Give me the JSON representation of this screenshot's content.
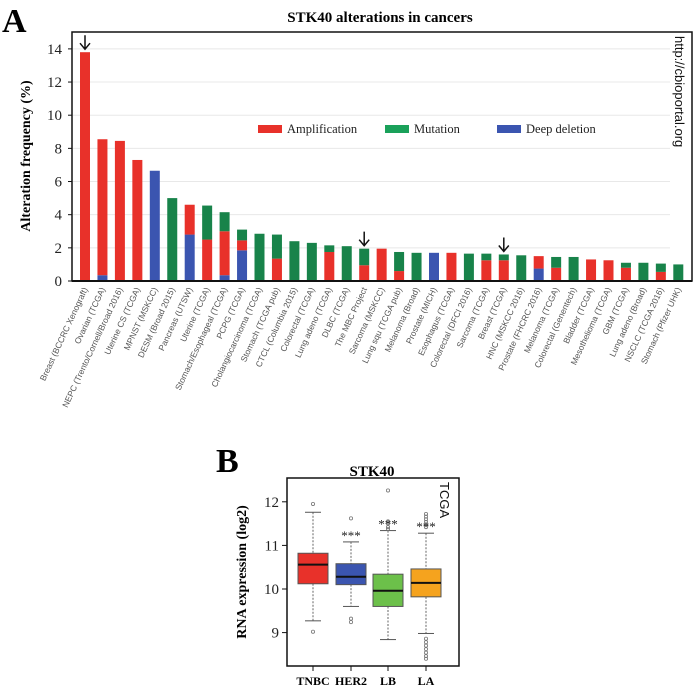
{
  "chart_data": [
    {
      "panel": "A",
      "type": "bar",
      "stacked": true,
      "title": "STK40 alterations in cancers",
      "xlabel": "",
      "ylabel": "Alteration frequency (%)",
      "ylim": [
        0,
        15
      ],
      "yticks": [
        0,
        2,
        4,
        6,
        8,
        10,
        12,
        14
      ],
      "grid": true,
      "legend_position": "top-center",
      "source_annotation": "http://cbioportal.org",
      "arrow_markers": [
        "Breast (BCCRC Xenograft)",
        "The MBC Project",
        "Breast (TCGA)"
      ],
      "categories": [
        "Breast (BCCRC Xenograft)",
        "Ovarian (TCGA)",
        "NEPC (Trento/Cornell/Broad 2016)",
        "Uterine CS (TCGA)",
        "MPNST (MSKCC)",
        "DESM (Broad 2015)",
        "Pancreas (UTSW)",
        "Uterine (TCGA)",
        "Stomach/Esophageal (TCGA)",
        "PCPG (TCGA)",
        "Cholangiocarcinoma (TCGA)",
        "Stomach (TCGA pub)",
        "CTCL (Columbia 2015)",
        "Colorectal (TCGA)",
        "Lung adeno (TCGA)",
        "DLBC (TCGA)",
        "The MBC Project",
        "Sarcoma (MSKCC)",
        "Lung squ (TCGA pub)",
        "Melanoma (Broad)",
        "Prostate (MICH)",
        "Esophagus (TCGA)",
        "Colorectal (DFCI 2016)",
        "Sarcoma (TCGA)",
        "Breast (TCGA)",
        "HNC (MSKCC 2016)",
        "Prostate (FHCRC 2016)",
        "Melanoma (TCGA)",
        "Colorectal (Genentech)",
        "Bladder (TCGA)",
        "Mesothelioma (TCGA)",
        "GBM (TCGA)",
        "Lung adeno (Broad)",
        "NSCLC (TCGA 2016)",
        "Stomach (Pfizer UHK)"
      ],
      "series": [
        {
          "name": "Deep deletion",
          "color": "#3b55b0",
          "values": [
            0,
            0.35,
            0,
            0,
            6.65,
            0,
            2.8,
            0,
            0.35,
            1.85,
            0,
            0,
            0,
            0,
            0,
            0,
            0,
            0,
            0,
            0,
            1.7,
            0,
            0,
            0,
            0,
            0,
            0.75,
            0,
            0,
            0,
            0,
            0,
            0,
            0,
            0
          ]
        },
        {
          "name": "Amplification",
          "color": "#e8312a",
          "values": [
            13.8,
            8.2,
            8.45,
            7.3,
            0,
            0,
            1.8,
            2.5,
            2.65,
            0.6,
            0,
            1.35,
            0,
            0,
            1.75,
            0,
            0.95,
            1.95,
            0.6,
            0,
            0,
            1.7,
            0,
            1.25,
            1.25,
            0,
            0.75,
            0.8,
            0,
            1.3,
            1.25,
            0.8,
            0,
            0.55,
            0
          ]
        },
        {
          "name": "Mutation",
          "color": "#18834a",
          "values": [
            0,
            0,
            0,
            0,
            0,
            5.0,
            0,
            2.05,
            1.15,
            0.65,
            2.85,
            1.45,
            2.4,
            2.3,
            0.4,
            2.1,
            1.0,
            0,
            1.15,
            1.7,
            0,
            0,
            1.65,
            0.4,
            0.35,
            1.55,
            0,
            0.65,
            1.45,
            0,
            0,
            0.3,
            1.1,
            0.5,
            1.0
          ]
        }
      ],
      "legend": [
        {
          "label": "Amplification",
          "color": "#e8312a"
        },
        {
          "label": "Mutation",
          "color": "#1aa15a"
        },
        {
          "label": "Deep deletion",
          "color": "#3b55b0"
        }
      ]
    },
    {
      "panel": "B",
      "type": "box",
      "title": "STK40",
      "xlabel": "",
      "ylabel": "RNA expression (log2)",
      "ylim": [
        8.25,
        12.55
      ],
      "yticks": [
        9,
        10,
        11,
        12
      ],
      "annotation": "TCGA",
      "categories": [
        "TNBC",
        "HER2",
        "LB",
        "LA"
      ],
      "boxes": [
        {
          "name": "TNBC",
          "color": "#e8312a",
          "whisker_low": 9.27,
          "q1": 10.12,
          "median": 10.56,
          "q3": 10.82,
          "whisker_high": 11.76,
          "outliers": [
            11.95,
            9.02
          ],
          "significance": ""
        },
        {
          "name": "HER2",
          "color": "#3b55b0",
          "whisker_low": 9.6,
          "q1": 10.1,
          "median": 10.28,
          "q3": 10.58,
          "whisker_high": 11.08,
          "outliers": [
            11.62,
            9.32,
            9.24
          ],
          "significance": "***"
        },
        {
          "name": "LB",
          "color": "#6cc04a",
          "whisker_low": 8.84,
          "q1": 9.6,
          "median": 9.96,
          "q3": 10.34,
          "whisker_high": 11.34,
          "outliers": [
            12.26,
            11.55,
            11.5,
            11.42,
            11.38
          ],
          "significance": "***"
        },
        {
          "name": "LA",
          "color": "#f5a31e",
          "whisker_low": 8.98,
          "q1": 9.82,
          "median": 10.14,
          "q3": 10.46,
          "whisker_high": 11.28,
          "outliers": [
            11.72,
            11.66,
            11.6,
            11.54,
            11.48,
            11.42,
            8.86,
            8.78,
            8.7,
            8.62,
            8.54,
            8.46,
            8.4
          ],
          "significance": "***"
        }
      ]
    }
  ],
  "labels": {
    "panel_a": "A",
    "panel_b": "B"
  }
}
